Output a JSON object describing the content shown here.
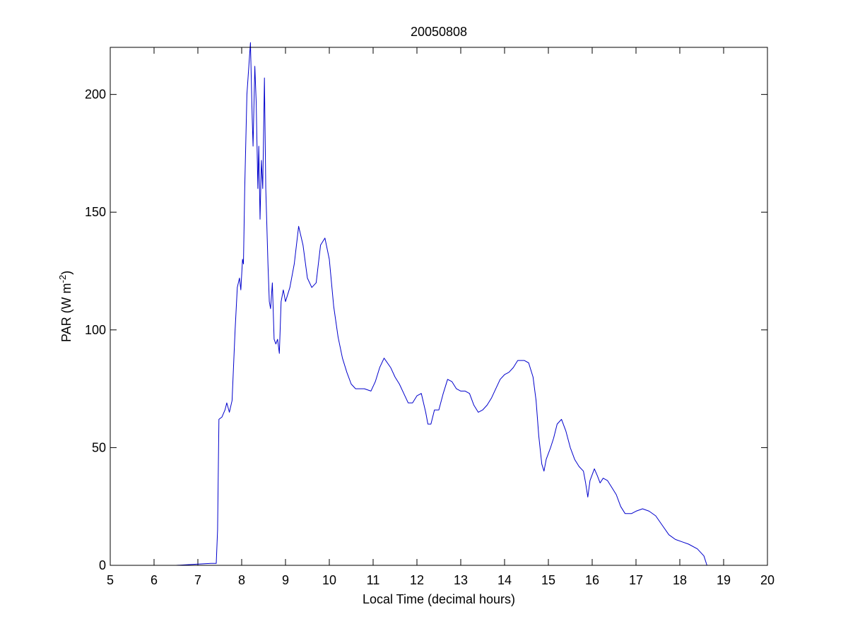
{
  "chart_data": {
    "type": "line",
    "title": "20050808",
    "xlabel": "Local Time (decimal hours)",
    "ylabel": {
      "prefix": "PAR (W m",
      "superscript": "-2",
      "suffix": ")"
    },
    "xlim": [
      5,
      20
    ],
    "ylim": [
      0,
      220
    ],
    "x_ticks": [
      "5",
      "6",
      "7",
      "8",
      "9",
      "10",
      "11",
      "12",
      "13",
      "14",
      "15",
      "16",
      "17",
      "18",
      "19",
      "20"
    ],
    "y_ticks": [
      "0",
      "50",
      "100",
      "150",
      "200"
    ],
    "grid": false,
    "line_color": "#0000cc",
    "series": [
      {
        "points": [
          [
            5.75,
            0
          ],
          [
            6.0,
            0
          ],
          [
            6.5,
            0
          ],
          [
            7.0,
            0.5
          ],
          [
            7.3,
            0.8
          ],
          [
            7.42,
            0.8
          ],
          [
            7.45,
            15
          ],
          [
            7.47,
            45
          ],
          [
            7.48,
            62
          ],
          [
            7.55,
            63
          ],
          [
            7.62,
            66
          ],
          [
            7.66,
            69
          ],
          [
            7.72,
            65
          ],
          [
            7.78,
            70
          ],
          [
            7.85,
            100
          ],
          [
            7.9,
            118
          ],
          [
            7.95,
            122
          ],
          [
            7.98,
            117
          ],
          [
            8.02,
            130
          ],
          [
            8.04,
            128
          ],
          [
            8.07,
            160
          ],
          [
            8.12,
            200
          ],
          [
            8.2,
            222
          ],
          [
            8.24,
            190
          ],
          [
            8.26,
            178
          ],
          [
            8.3,
            212
          ],
          [
            8.33,
            197
          ],
          [
            8.37,
            160
          ],
          [
            8.39,
            178
          ],
          [
            8.42,
            147
          ],
          [
            8.45,
            172
          ],
          [
            8.48,
            160
          ],
          [
            8.52,
            207
          ],
          [
            8.55,
            160
          ],
          [
            8.6,
            128
          ],
          [
            8.63,
            112
          ],
          [
            8.66,
            109
          ],
          [
            8.7,
            120
          ],
          [
            8.74,
            96
          ],
          [
            8.78,
            94
          ],
          [
            8.82,
            96
          ],
          [
            8.86,
            90
          ],
          [
            8.9,
            112
          ],
          [
            8.95,
            117
          ],
          [
            9.0,
            112
          ],
          [
            9.05,
            115
          ],
          [
            9.1,
            118
          ],
          [
            9.2,
            128
          ],
          [
            9.3,
            144
          ],
          [
            9.4,
            136
          ],
          [
            9.5,
            122
          ],
          [
            9.6,
            118
          ],
          [
            9.7,
            120
          ],
          [
            9.8,
            136
          ],
          [
            9.9,
            139
          ],
          [
            10.0,
            130
          ],
          [
            10.1,
            110
          ],
          [
            10.2,
            97
          ],
          [
            10.3,
            88
          ],
          [
            10.4,
            82
          ],
          [
            10.5,
            77
          ],
          [
            10.6,
            75
          ],
          [
            10.8,
            75
          ],
          [
            10.95,
            74
          ],
          [
            11.05,
            78
          ],
          [
            11.15,
            84
          ],
          [
            11.25,
            88
          ],
          [
            11.4,
            84
          ],
          [
            11.5,
            80
          ],
          [
            11.6,
            77
          ],
          [
            11.7,
            73
          ],
          [
            11.8,
            69
          ],
          [
            11.9,
            69
          ],
          [
            12.0,
            72
          ],
          [
            12.1,
            73
          ],
          [
            12.2,
            65
          ],
          [
            12.25,
            60
          ],
          [
            12.32,
            60
          ],
          [
            12.4,
            66
          ],
          [
            12.5,
            66
          ],
          [
            12.6,
            73
          ],
          [
            12.7,
            79
          ],
          [
            12.8,
            78
          ],
          [
            12.9,
            75
          ],
          [
            13.0,
            74
          ],
          [
            13.1,
            74
          ],
          [
            13.2,
            73
          ],
          [
            13.3,
            68
          ],
          [
            13.4,
            65
          ],
          [
            13.5,
            66
          ],
          [
            13.6,
            68
          ],
          [
            13.7,
            71
          ],
          [
            13.8,
            75
          ],
          [
            13.9,
            79
          ],
          [
            14.0,
            81
          ],
          [
            14.1,
            82
          ],
          [
            14.2,
            84
          ],
          [
            14.3,
            87
          ],
          [
            14.45,
            87
          ],
          [
            14.55,
            86
          ],
          [
            14.65,
            80
          ],
          [
            14.72,
            70
          ],
          [
            14.78,
            55
          ],
          [
            14.85,
            43
          ],
          [
            14.9,
            40
          ],
          [
            14.95,
            45
          ],
          [
            15.05,
            50
          ],
          [
            15.12,
            54
          ],
          [
            15.2,
            60
          ],
          [
            15.3,
            62
          ],
          [
            15.4,
            57
          ],
          [
            15.5,
            50
          ],
          [
            15.6,
            45
          ],
          [
            15.7,
            42
          ],
          [
            15.8,
            40
          ],
          [
            15.85,
            35
          ],
          [
            15.9,
            29
          ],
          [
            15.95,
            36
          ],
          [
            16.05,
            41
          ],
          [
            16.12,
            38
          ],
          [
            16.18,
            35
          ],
          [
            16.25,
            37
          ],
          [
            16.35,
            36
          ],
          [
            16.45,
            33
          ],
          [
            16.55,
            30
          ],
          [
            16.65,
            25
          ],
          [
            16.75,
            22
          ],
          [
            16.9,
            22
          ],
          [
            17.0,
            23
          ],
          [
            17.15,
            24
          ],
          [
            17.3,
            23
          ],
          [
            17.45,
            21
          ],
          [
            17.6,
            17
          ],
          [
            17.75,
            13
          ],
          [
            17.9,
            11
          ],
          [
            18.05,
            10
          ],
          [
            18.2,
            9
          ],
          [
            18.4,
            7
          ],
          [
            18.55,
            4
          ],
          [
            18.62,
            0
          ],
          [
            19.0,
            0
          ]
        ]
      }
    ]
  }
}
